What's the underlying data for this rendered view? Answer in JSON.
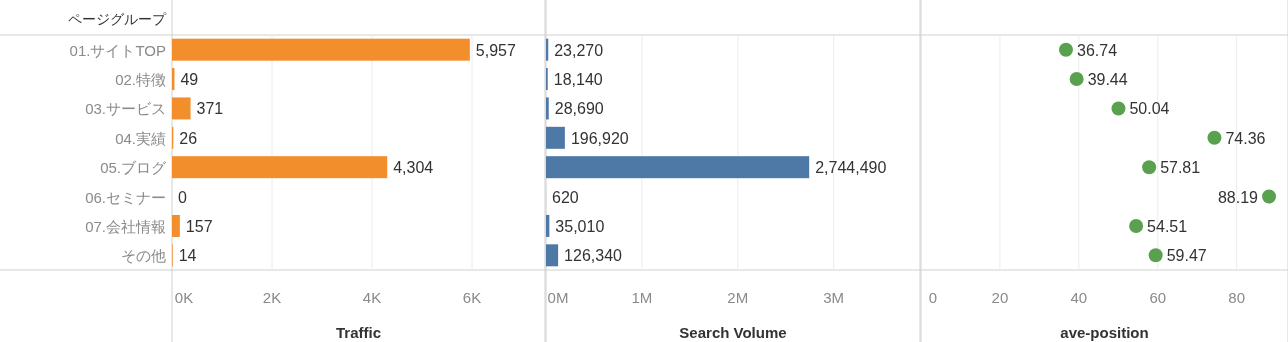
{
  "chart_data": [
    {
      "type": "bar",
      "orientation": "horizontal",
      "ylabel": "ページグループ",
      "xlabel": "Traffic",
      "categories": [
        "01.サイトTOP",
        "02.特徴",
        "03.サービス",
        "04.実績",
        "05.ブログ",
        "06.セミナー",
        "07.会社情報",
        "その他"
      ],
      "series": [
        {
          "color": "#f28e2b",
          "values": [
            5957,
            49,
            371,
            26,
            4304,
            0,
            157,
            14
          ],
          "value_labels": [
            "5,957",
            "49",
            "371",
            "26",
            "4,304",
            "0",
            "157",
            "14"
          ]
        }
      ],
      "xlim": [
        0,
        7460
      ],
      "xticks": [
        {
          "value": 0,
          "label": "0K"
        },
        {
          "value": 2000,
          "label": "2K"
        },
        {
          "value": 4000,
          "label": "4K"
        },
        {
          "value": 6000,
          "label": "6K"
        }
      ],
      "grid": "x"
    },
    {
      "type": "bar",
      "orientation": "horizontal",
      "xlabel": "Search Volume",
      "categories": [
        null,
        null,
        null,
        null,
        null,
        null,
        null,
        null
      ],
      "series": [
        {
          "color": "#4e79a7",
          "values": [
            23270,
            18140,
            28690,
            196920,
            2744490,
            620,
            35010,
            126340
          ],
          "value_labels": [
            "23,270",
            "18,140",
            "28,690",
            "196,920",
            "2,744,490",
            "620",
            "35,010",
            "126,340"
          ]
        }
      ],
      "xlim": [
        0,
        3900000
      ],
      "xticks": [
        {
          "value": 0,
          "label": "0M"
        },
        {
          "value": 1000000,
          "label": "1M"
        },
        {
          "value": 2000000,
          "label": "2M"
        },
        {
          "value": 3000000,
          "label": "3M"
        }
      ],
      "grid": "x",
      "tick_labels": "x"
    },
    {
      "type": "scatter",
      "orientation": "horizontal",
      "xlabel": "ave-position",
      "categories": [
        null,
        null,
        null,
        null,
        null,
        null,
        null,
        null
      ],
      "series": [
        {
          "color": "#59a14f",
          "values": [
            36.74,
            39.44,
            50.04,
            74.36,
            57.81,
            88.19,
            54.51,
            59.47
          ]
        }
      ],
      "xlim": [
        0,
        93
      ],
      "xticks": [
        0,
        20,
        40,
        60,
        80
      ],
      "grid": "x",
      "data_labels": true,
      "tick_labels": "x",
      "marker": "circle"
    }
  ]
}
